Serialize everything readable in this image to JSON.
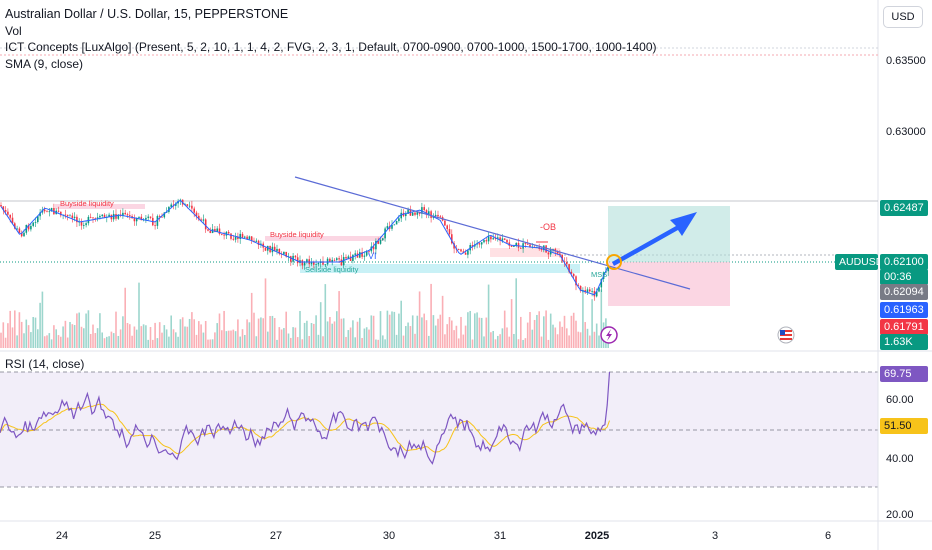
{
  "header": {
    "title": "Australian Dollar / U.S. Dollar, 15, PEPPERSTONE",
    "indicators": [
      "Vol",
      "ICT Concepts [LuxAlgo] (Present, 5, 2, 10, 1, 1, 4, 2, FVG, 2, 3, 1, Default, 0700-0900, 0700-1000, 1500-1700, 1000-1400)",
      "SMA (9, close)"
    ]
  },
  "currency_button": "USD",
  "price_axis": {
    "ticks": [
      "0.63500",
      "0.63000"
    ],
    "target_tag": "0.62487",
    "symbol": "AUDUSD",
    "current_price": "0.62100",
    "countdown": "00:36",
    "sma_value": "0.62094",
    "blue_value": "0.61963",
    "stop_value": "0.61791",
    "volume_value": "1.63K"
  },
  "rsi": {
    "title": "RSI (14, close)",
    "ticks": [
      "60.00",
      "40.00",
      "20.00"
    ],
    "rsi_value": "69.75",
    "ma_value": "51.50"
  },
  "dates": [
    "24",
    "25",
    "27",
    "30",
    "31",
    "2025",
    "3",
    "6"
  ],
  "annotations": {
    "buyside_1": "Buyside liquidity",
    "buyside_2": "Buyside liquidity",
    "sellside": "Sellside liquidity",
    "ob": "-OB",
    "vi": "VI",
    "mss": "MSS"
  },
  "colors": {
    "up": "#089981",
    "down": "#f23645",
    "trendline": "#2962ff",
    "rsi": "#7e57c2",
    "rsi_ma": "#f7c31a",
    "target_zone": "#b2dfdb",
    "stop_zone": "#f8bbd0"
  }
}
